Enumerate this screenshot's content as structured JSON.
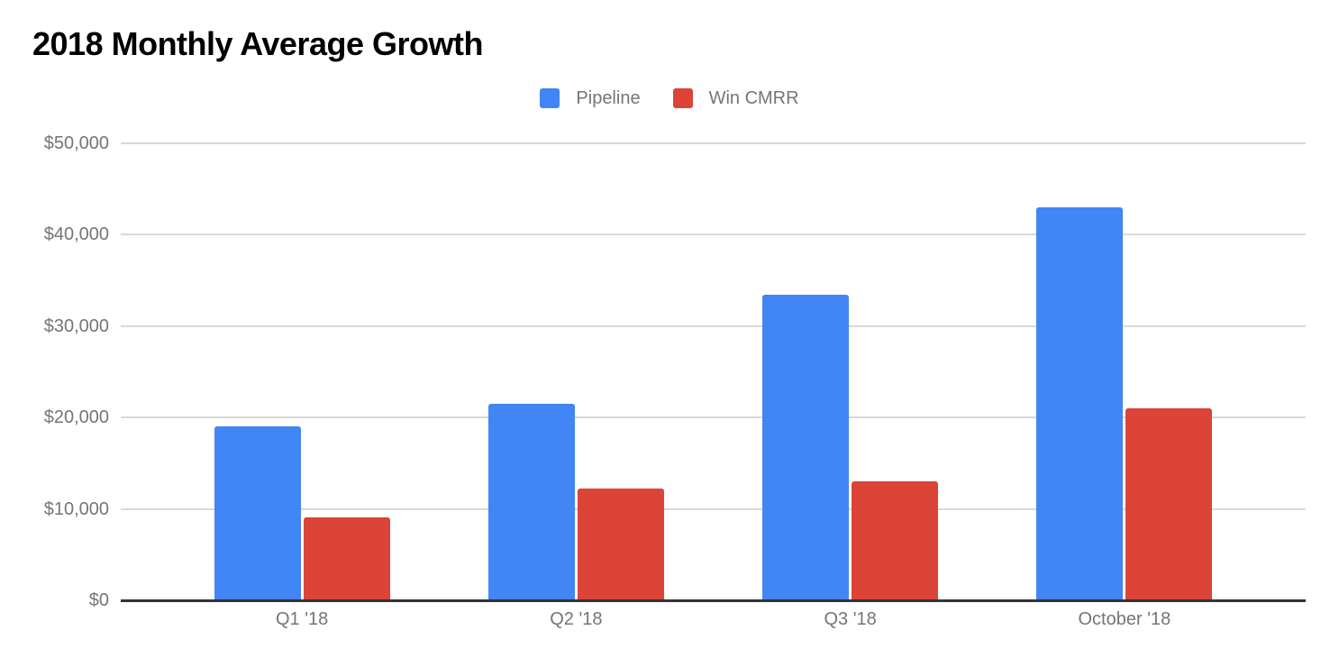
{
  "title": "2018 Monthly Average Growth",
  "chart_data": {
    "type": "bar",
    "title": "2018 Monthly Average Growth",
    "categories": [
      "Q1 '18",
      "Q2 '18",
      "Q3 '18",
      "October '18"
    ],
    "series": [
      {
        "name": "Pipeline",
        "color": "#4285F4",
        "values": [
          19000,
          21500,
          33400,
          43000
        ]
      },
      {
        "name": "Win CMRR",
        "color": "#DB4437",
        "values": [
          9100,
          12200,
          13000,
          21000
        ]
      }
    ],
    "xlabel": "",
    "ylabel": "",
    "ylim": [
      0,
      50000
    ],
    "ytick_interval": 10000,
    "y_ticks": [
      {
        "value": 50000,
        "label": "$50,000"
      },
      {
        "value": 40000,
        "label": "$40,000"
      },
      {
        "value": 30000,
        "label": "$30,000"
      },
      {
        "value": 20000,
        "label": "$20,000"
      },
      {
        "value": 10000,
        "label": "$10,000"
      },
      {
        "value": 0,
        "label": "$0"
      }
    ],
    "grid": true,
    "legend_position": "top-center",
    "colors": {
      "title_text": "#000000",
      "axis_text": "#757575",
      "legend_text": "#757575",
      "gridline": "#d9d9d9",
      "baseline": "#333333",
      "background": "#ffffff"
    }
  }
}
